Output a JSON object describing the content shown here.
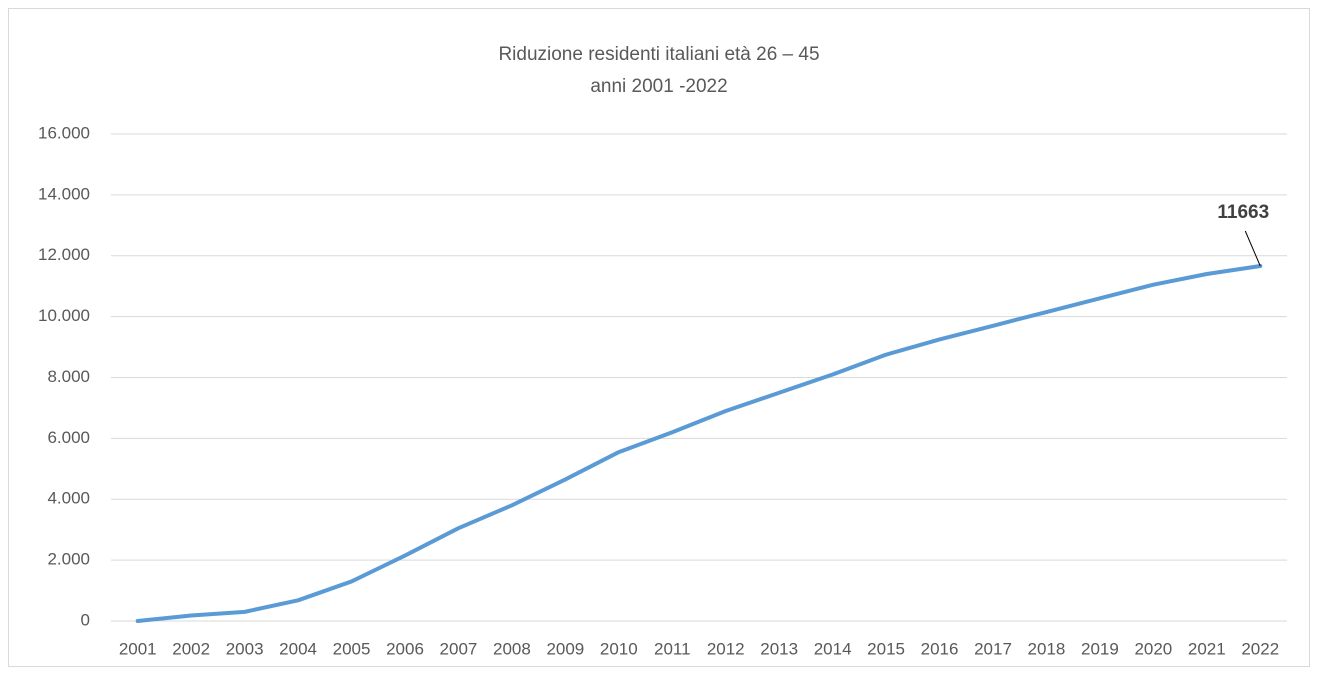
{
  "chart_data": {
    "type": "line",
    "title": "Riduzione residenti italiani età 26 – 45",
    "subtitle": "anni 2001 -2022",
    "categories": [
      "2001",
      "2002",
      "2003",
      "2004",
      "2005",
      "2006",
      "2007",
      "2008",
      "2009",
      "2010",
      "2011",
      "2012",
      "2013",
      "2014",
      "2015",
      "2016",
      "2017",
      "2018",
      "2019",
      "2020",
      "2021",
      "2022"
    ],
    "series": [
      {
        "name": "Riduzione residenti",
        "color": "#5b9bd5",
        "values": [
          0,
          180,
          300,
          680,
          1300,
          2150,
          3050,
          3800,
          4650,
          5550,
          6200,
          6900,
          7500,
          8100,
          8750,
          9250,
          9700,
          10150,
          10600,
          11050,
          11400,
          11663
        ]
      }
    ],
    "ylim": [
      0,
      16000
    ],
    "yticks": [
      0,
      {
        "value": 2000,
        "label": "2.000"
      },
      {
        "value": 4000,
        "label": "4.000"
      },
      {
        "value": 6000,
        "label": "6.000"
      },
      {
        "value": 8000,
        "label": "8.000"
      },
      {
        "value": 10000,
        "label": "10.000"
      },
      {
        "value": 12000,
        "label": "12.000"
      },
      {
        "value": 14000,
        "label": "14.000"
      },
      {
        "value": 16000,
        "label": "16.000"
      }
    ],
    "grid": true
  }
}
